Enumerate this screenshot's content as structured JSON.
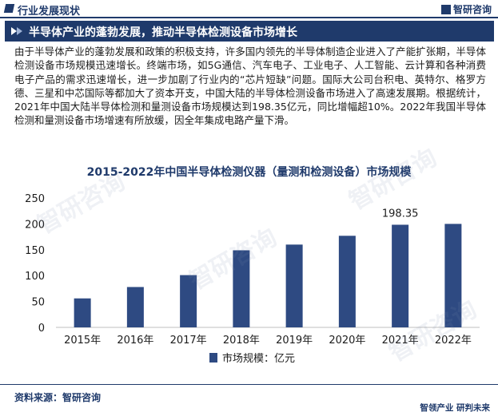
{
  "header": {
    "section_title": "行业发展现状",
    "logo_text": "智研咨询"
  },
  "banner": {
    "headline": "半导体产业的蓬勃发展，推动半导体检测设备市场增长"
  },
  "body_text": "由于半导体产业的蓬勃发展和政策的积极支持，许多国内领先的半导体制造企业进入了产能扩张期，半导体检测设备市场规模迅速增长。终端市场，如5G通信、汽车电子、工业电子、人工智能、云计算和各种消费电子产品的需求迅速增长，进一步加剧了行业内的“芯片短缺”问题。国际大公司台积电、英特尔、格罗方德、三星和中芯国际等都加大了资本开支，中国大陆的半导体检测设备市场进入了高速发展期。根据统计，2021年中国大陆半导体检测和量测设备市场规模达到198.35亿元，同比增幅超10%。2022年我国半导体检测和量测设备市场增速有所放缓，因全年集成电路产量下滑。",
  "chart_data": {
    "type": "bar",
    "title": "2015-2022年中国半导体检测仪器（量测和检测设备）市场规模",
    "categories": [
      "2015年",
      "2016年",
      "2017年",
      "2018年",
      "2019年",
      "2020年",
      "2021年",
      "2022年"
    ],
    "series": [
      {
        "name": "市场规模：亿元",
        "values": [
          56,
          78,
          101,
          149,
          160,
          177,
          198.35,
          200
        ]
      }
    ],
    "ylim": [
      0,
      250
    ],
    "yticks": [
      0,
      50,
      100,
      150,
      200,
      250
    ],
    "data_labels": [
      {
        "category": "2021年",
        "text": "198.35"
      }
    ],
    "grid": false,
    "legend": "bottom",
    "bar_color": "#2e4a82"
  },
  "footer": {
    "source": "资料来源：智研咨询",
    "slogan": "智领产业 研判未来"
  },
  "watermark": "智研咨询"
}
